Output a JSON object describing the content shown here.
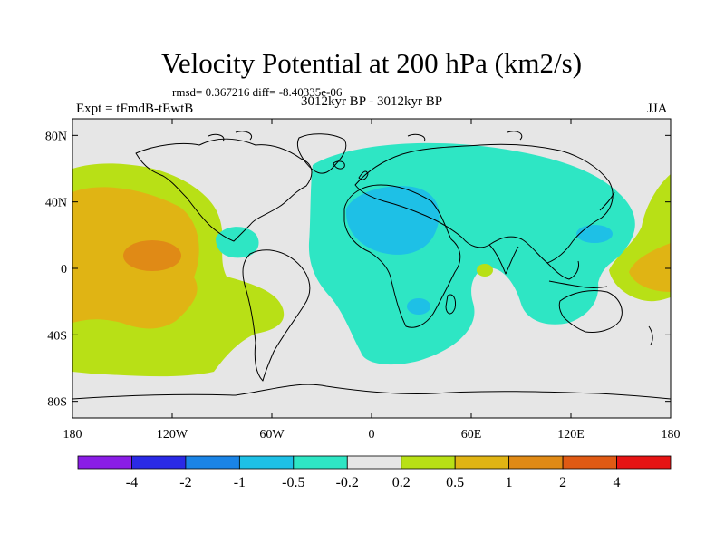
{
  "title": "Velocity Potential at 200 hPa (km2/s)",
  "stats": "rmsd= 0.367216 diff= -8.40335e-06",
  "experiment": "Expt = tFmdB-tEwtB",
  "period": "3012kyr BP - 3012kyr BP",
  "season": "JJA",
  "colors": {
    "land_outline": "#000000",
    "background_bin": "#e6e6e6",
    "frame": "#000000"
  },
  "chart_data": {
    "type": "heatmap",
    "variable": "Velocity Potential at 200 hPa",
    "units": "km2/s",
    "projection": "cylindrical equidistant",
    "xlim": [
      -180,
      180
    ],
    "ylim": [
      -90,
      90
    ],
    "x_ticks": [
      {
        "value": -180,
        "label": "180"
      },
      {
        "value": -120,
        "label": "120W"
      },
      {
        "value": -60,
        "label": "60W"
      },
      {
        "value": 0,
        "label": "0"
      },
      {
        "value": 60,
        "label": "60E"
      },
      {
        "value": 120,
        "label": "120E"
      },
      {
        "value": 180,
        "label": "180"
      }
    ],
    "y_ticks": [
      {
        "value": 80,
        "label": "80N"
      },
      {
        "value": 40,
        "label": "40N"
      },
      {
        "value": 0,
        "label": "0"
      },
      {
        "value": -40,
        "label": "40S"
      },
      {
        "value": -80,
        "label": "80S"
      }
    ],
    "colorbar": {
      "levels": [
        "-4",
        "-2",
        "-1",
        "-0.5",
        "-0.2",
        "0.2",
        "0.5",
        "1",
        "2",
        "4"
      ],
      "colors": [
        "#8a1de6",
        "#2a2ae6",
        "#1a84e6",
        "#1ec0e6",
        "#2ee6c4",
        "#e6e6e6",
        "#b8e016",
        "#e0b414",
        "#e08a16",
        "#e05a14",
        "#e61414"
      ]
    },
    "anomalies": [
      {
        "name": "central Pacific positive",
        "lon": -140,
        "lat": 10,
        "level_index": 7,
        "value": 1.0
      },
      {
        "name": "western Pacific positive",
        "lon": 178,
        "lat": 0,
        "level_index": 7,
        "value": 0.8
      },
      {
        "name": "Africa / Eurasia negative",
        "lon": 20,
        "lat": 25,
        "level_index": 4,
        "value": -0.4
      },
      {
        "name": "Sahara negative core",
        "lon": 15,
        "lat": 30,
        "level_index": 3,
        "value": -0.7
      },
      {
        "name": "Caribbean negative",
        "lon": -75,
        "lat": 15,
        "level_index": 4,
        "value": -0.3
      },
      {
        "name": "Indian Ocean positive",
        "lon": 55,
        "lat": 0,
        "level_index": 6,
        "value": 0.3
      }
    ]
  }
}
